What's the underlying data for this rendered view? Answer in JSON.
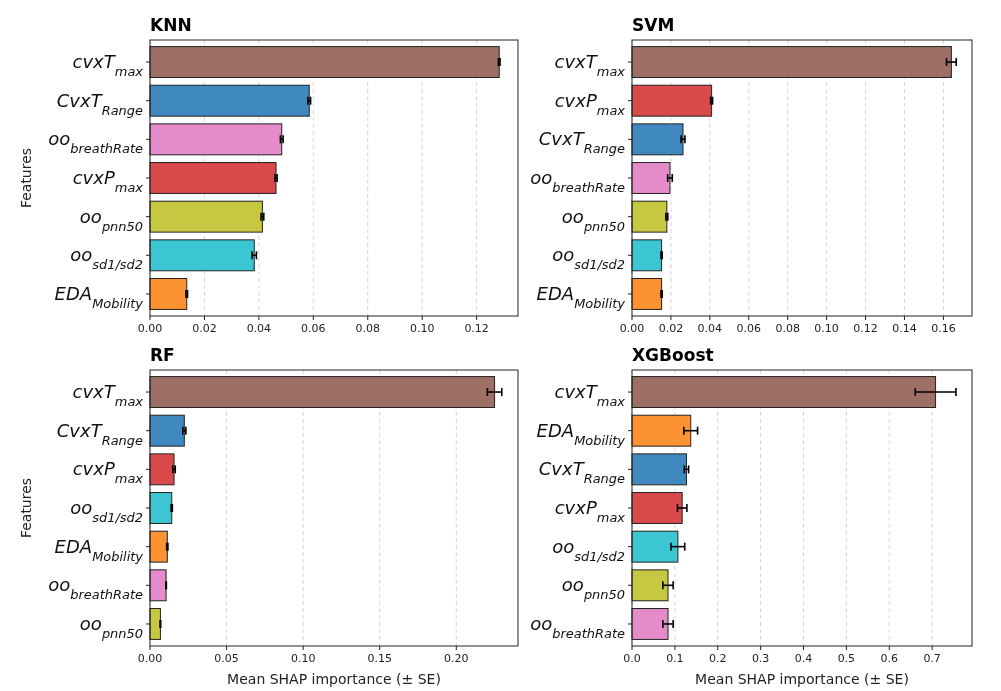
{
  "chart_data": [
    {
      "type": "bar",
      "orientation": "horizontal",
      "title": "KNN",
      "ylabel": "Features",
      "categories": [
        "cvxT$_{max}$",
        "CvxT$_{Range}$",
        "oo$_{breathRate}$",
        "cvxP$_{max}$",
        "oo$_{pnn50}$",
        "oo$_{sd1/sd2}$",
        "EDA$_{Mobility}$"
      ],
      "values": [
        0.1283,
        0.0585,
        0.0484,
        0.0463,
        0.0413,
        0.0383,
        0.0135
      ],
      "errors": [
        0.0003,
        0.0005,
        0.0005,
        0.0004,
        0.0005,
        0.0008,
        0.0003
      ],
      "colors": [
        "#9d6f66",
        "#3f88c0",
        "#e68bca",
        "#da4a4a",
        "#c5c840",
        "#3cc6d4",
        "#fd9233"
      ],
      "xlim": [
        0,
        0.1352
      ],
      "xticks": [
        {
          "value": 0,
          "label": "0.00"
        },
        0.02,
        0.04,
        0.06,
        0.08,
        {
          "value": 0.1,
          "label": "0.10"
        },
        0.12
      ],
      "grid": "x",
      "line_style": "dashed"
    },
    {
      "type": "bar",
      "orientation": "horizontal",
      "title": "SVM",
      "categories": [
        "cvxT$_{max}$",
        "cvxP$_{max}$",
        "CvxT$_{Range}$",
        "oo$_{breathRate}$",
        "oo$_{pnn50}$",
        "oo$_{sd1/sd2}$",
        "EDA$_{Mobility}$"
      ],
      "values": [
        0.1641,
        0.0409,
        0.0262,
        0.0195,
        0.0179,
        0.0152,
        0.0152
      ],
      "errors": [
        0.0025,
        0.0005,
        0.001,
        0.0012,
        0.0005,
        0.0003,
        0.0003
      ],
      "colors": [
        "#9d6f66",
        "#da4a4a",
        "#3f88c0",
        "#e68bca",
        "#c5c840",
        "#3cc6d4",
        "#fd9233"
      ],
      "xlim": [
        0,
        0.1747
      ],
      "xticks": [
        {
          "value": 0,
          "label": "0.00"
        },
        0.02,
        0.04,
        0.06,
        0.08,
        {
          "value": 0.1,
          "label": "0.10"
        },
        0.12,
        0.14,
        0.16
      ],
      "grid": "x",
      "line_style": "dashed"
    },
    {
      "type": "bar",
      "orientation": "horizontal",
      "title": "RF",
      "ylabel": "Features",
      "xlabel": "Mean SHAP importance (± SE)",
      "categories": [
        "cvxT$_{max}$",
        "CvxT$_{Range}$",
        "cvxP$_{max}$",
        "oo$_{sd1/sd2}$",
        "EDA$_{Mobility}$",
        "oo$_{breathRate}$",
        "oo$_{pnn50}$"
      ],
      "values": [
        0.225,
        0.0224,
        0.0157,
        0.0142,
        0.0113,
        0.0105,
        0.0068
      ],
      "errors": [
        0.0047,
        0.001,
        0.0008,
        0.0004,
        0.0004,
        0.0002,
        0.0002
      ],
      "colors": [
        "#9d6f66",
        "#3f88c0",
        "#da4a4a",
        "#3cc6d4",
        "#fd9233",
        "#e68bca",
        "#c5c840"
      ],
      "xlim": [
        0,
        0.2403
      ],
      "xticks": [
        {
          "value": 0,
          "label": "0.00"
        },
        0.05,
        {
          "value": 0.1,
          "label": "0.10"
        },
        0.15,
        {
          "value": 0.2,
          "label": "0.20"
        }
      ],
      "grid": "x",
      "line_style": "dashed"
    },
    {
      "type": "bar",
      "orientation": "horizontal",
      "title": "XGBoost",
      "xlabel": "Mean SHAP importance (± SE)",
      "categories": [
        "cvxT$_{max}$",
        "EDA$_{Mobility}$",
        "CvxT$_{Range}$",
        "cvxP$_{max}$",
        "oo$_{sd1/sd2}$",
        "oo$_{pnn50}$",
        "oo$_{breathRate}$"
      ],
      "values": [
        0.708,
        0.137,
        0.127,
        0.117,
        0.107,
        0.084,
        0.084
      ],
      "errors": [
        0.0475,
        0.016,
        0.005,
        0.011,
        0.016,
        0.012,
        0.012
      ],
      "colors": [
        "#9d6f66",
        "#fd9233",
        "#3f88c0",
        "#da4a4a",
        "#3cc6d4",
        "#c5c840",
        "#e68bca"
      ],
      "xlim": [
        0,
        0.793
      ],
      "xticks": [
        {
          "value": 0,
          "label": "0.0"
        },
        0.1,
        0.2,
        0.3,
        0.4,
        0.5,
        0.6,
        0.7
      ],
      "grid": "x",
      "line_style": "dashed"
    }
  ]
}
